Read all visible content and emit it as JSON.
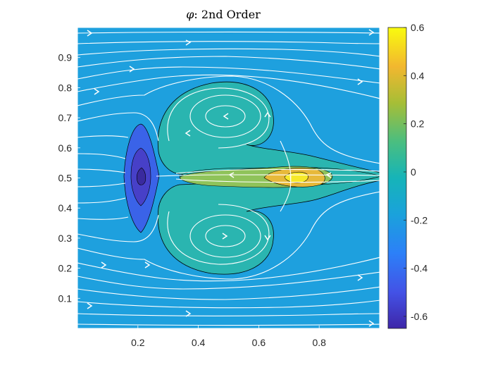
{
  "chart_data": {
    "type": "heatmap",
    "title_symbol": "φ",
    "title_rest": ": 2nd Order",
    "xlabel": "",
    "ylabel": "",
    "xlim": [
      0,
      1
    ],
    "ylim": [
      0,
      1
    ],
    "x_ticks": [
      {
        "value": 0.2,
        "label": "0.2"
      },
      {
        "value": 0.4,
        "label": "0.4"
      },
      {
        "value": 0.6,
        "label": "0.6"
      },
      {
        "value": 0.8,
        "label": "0.8"
      }
    ],
    "y_ticks": [
      {
        "value": 0.1,
        "label": "0.1"
      },
      {
        "value": 0.2,
        "label": "0.2"
      },
      {
        "value": 0.3,
        "label": "0.3"
      },
      {
        "value": 0.4,
        "label": "0.4"
      },
      {
        "value": 0.5,
        "label": "0.5"
      },
      {
        "value": 0.6,
        "label": "0.6"
      },
      {
        "value": 0.7,
        "label": "0.7"
      },
      {
        "value": 0.8,
        "label": "0.8"
      },
      {
        "value": 0.9,
        "label": "0.9"
      }
    ],
    "colorbar": {
      "min": -0.65,
      "max": 0.6,
      "ticks": [
        {
          "value": 0.6,
          "label": "0.6"
        },
        {
          "value": 0.4,
          "label": "0.4"
        },
        {
          "value": 0.2,
          "label": "0.2"
        },
        {
          "value": 0,
          "label": "0"
        },
        {
          "value": -0.2,
          "label": "-0.2"
        },
        {
          "value": -0.4,
          "label": "-0.4"
        },
        {
          "value": -0.6,
          "label": "-0.6"
        }
      ],
      "colormap": "parula"
    },
    "features": [
      {
        "name": "upper-vortex",
        "center": [
          0.5,
          0.7
        ],
        "value": -0.05
      },
      {
        "name": "lower-vortex",
        "center": [
          0.5,
          0.3
        ],
        "value": -0.05
      },
      {
        "name": "negative-region",
        "center": [
          0.22,
          0.5
        ],
        "value": -0.6
      },
      {
        "name": "positive-region",
        "center": [
          0.73,
          0.5
        ],
        "value": 0.6
      }
    ],
    "background_value": -0.17,
    "streamlines": true,
    "streamline_color": "#ffffff",
    "contour_color": "#000000"
  }
}
